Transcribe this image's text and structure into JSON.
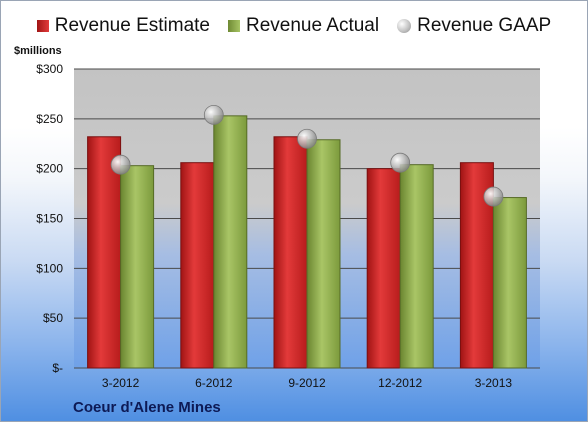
{
  "chart_data": {
    "type": "bar",
    "unit_label": "$millions",
    "categories": [
      "3-2012",
      "6-2012",
      "9-2012",
      "12-2012",
      "3-2013"
    ],
    "series": [
      {
        "name": "Revenue Estimate",
        "type": "bar",
        "color": "#d42a2a",
        "values": [
          232,
          206,
          232,
          200,
          206
        ]
      },
      {
        "name": "Revenue Actual",
        "type": "bar",
        "color": "#98b654",
        "values": [
          203,
          253,
          229,
          204,
          171
        ]
      },
      {
        "name": "Revenue GAAP",
        "type": "marker",
        "color": "#b9b9b9",
        "values": [
          204,
          254,
          230,
          206,
          172
        ]
      }
    ],
    "ylim": [
      0,
      300
    ],
    "yticks": [
      0,
      50,
      100,
      150,
      200,
      250,
      300
    ],
    "ytick_labels": [
      "$-",
      "$50",
      "$100",
      "$150",
      "$200",
      "$250",
      "$300"
    ],
    "grid": true,
    "legend_position": "top",
    "footer_text": "Coeur d'Alene Mines"
  }
}
